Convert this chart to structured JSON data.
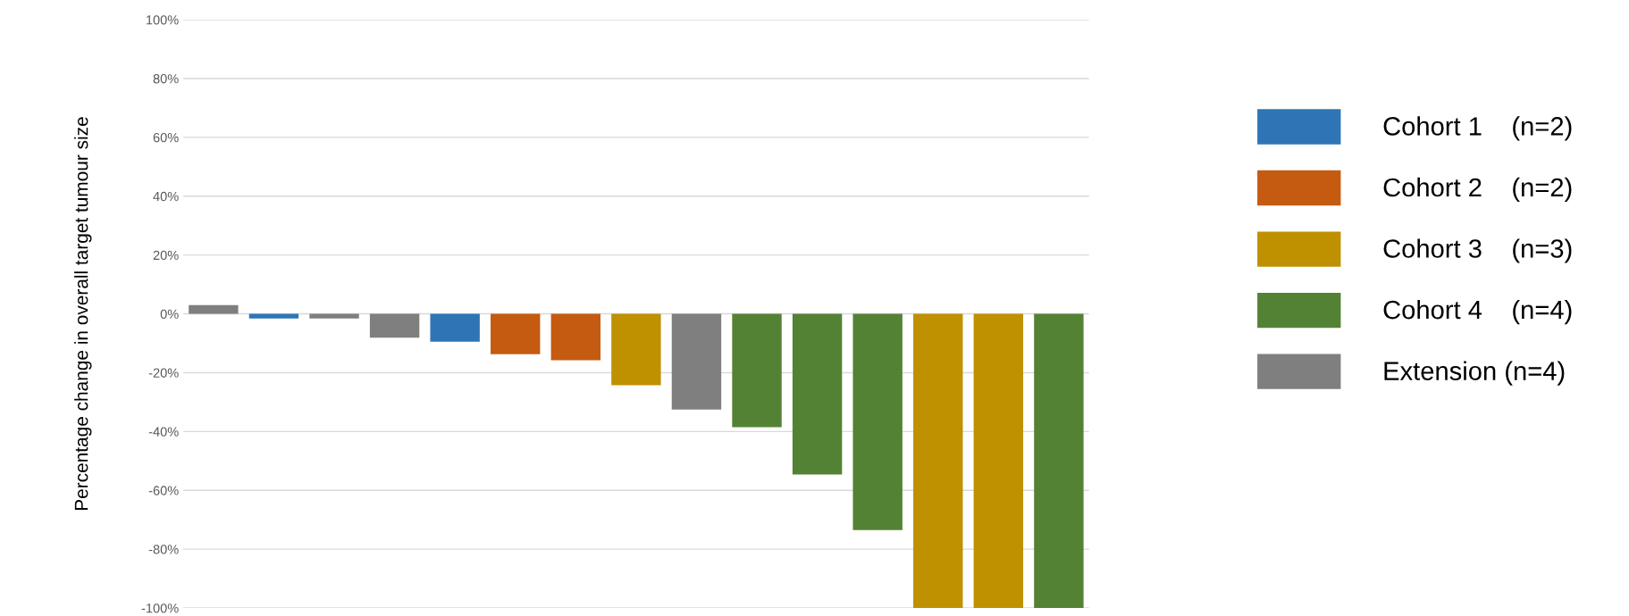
{
  "chart_data": {
    "type": "bar",
    "ylabel": "Percentage change in overall target tumour size",
    "categories": [
      null,
      null,
      null,
      null,
      null,
      null,
      null,
      null,
      null,
      null,
      null,
      null,
      null,
      null,
      null
    ],
    "series": [
      {
        "name": "Cohort 1    (n=2)",
        "color": "#2e75b6",
        "values": [
          null,
          -1.6,
          null,
          null,
          -9.5,
          null,
          null,
          null,
          null,
          null,
          null,
          null,
          null,
          null,
          null
        ]
      },
      {
        "name": "Cohort 2    (n=2)",
        "color": "#c55a11",
        "values": [
          null,
          null,
          null,
          null,
          null,
          -13.7,
          -15.8,
          null,
          null,
          null,
          null,
          null,
          null,
          null,
          null
        ]
      },
      {
        "name": "Cohort 3    (n=3)",
        "color": "#bf9000",
        "values": [
          null,
          null,
          null,
          null,
          null,
          null,
          null,
          -24.3,
          null,
          null,
          null,
          null,
          -100,
          -100,
          null
        ]
      },
      {
        "name": "Cohort 4    (n=4)",
        "color": "#548235",
        "values": [
          null,
          null,
          null,
          null,
          null,
          null,
          null,
          null,
          null,
          -38.5,
          -54.6,
          -73.5,
          null,
          null,
          -100
        ]
      },
      {
        "name": "Extension (n=4)",
        "color": "#7f7f7f",
        "values": [
          3,
          null,
          -1.6,
          -8.1,
          null,
          null,
          null,
          null,
          -32.5,
          null,
          null,
          null,
          null,
          null,
          null
        ]
      }
    ],
    "ylim": [
      -100,
      100
    ],
    "yticks": [
      {
        "value": -100,
        "label": "-100%"
      },
      {
        "value": -80,
        "label": "-80%"
      },
      {
        "value": -60,
        "label": "-60%"
      },
      {
        "value": -40,
        "label": "-40%"
      },
      {
        "value": -20,
        "label": "-20%"
      },
      {
        "value": 0,
        "label": "0%"
      },
      {
        "value": 20,
        "label": "20%"
      },
      {
        "value": 40,
        "label": "40%"
      },
      {
        "value": 60,
        "label": "60%"
      },
      {
        "value": 80,
        "label": "80%"
      },
      {
        "value": 100,
        "label": "100%"
      }
    ],
    "grid": "y",
    "legend": "right",
    "tick_labels": "y"
  }
}
